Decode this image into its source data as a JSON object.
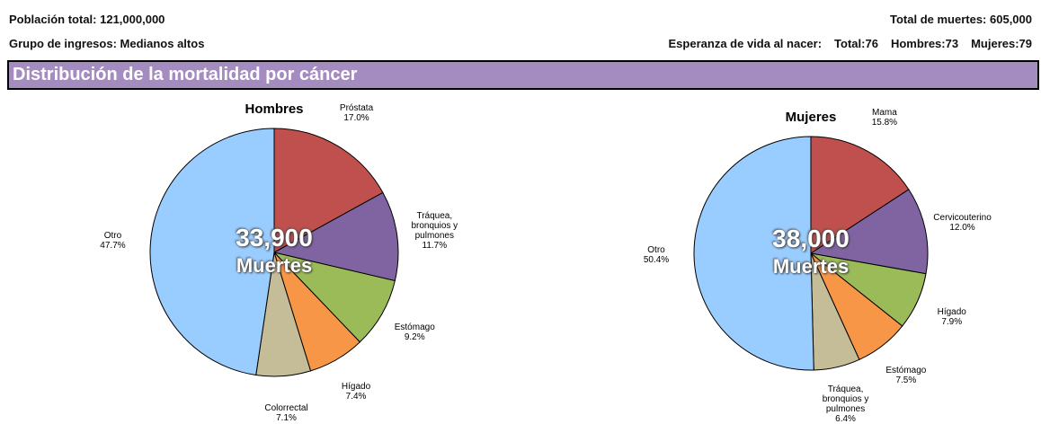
{
  "header": {
    "population": "Población total: 121,000,000",
    "income": "Grupo de ingresos:  Medianos altos",
    "deaths": "Total de muertes: 605,000",
    "life_label": "Esperanza de vida al nacer:",
    "life_total": "Total:76",
    "life_men": "Hombres:73",
    "life_women": "Mujeres:79",
    "section": "Distribución de la mortalidad por cáncer"
  },
  "chart_data": [
    {
      "type": "pie",
      "title": "Hombres",
      "center_value": "33,900",
      "center_label": "Muertes",
      "categories": [
        "Próstata",
        "Tráquea, bronquios y pulmones",
        "Estómago",
        "Hígado",
        "Colorrectal",
        "Otro"
      ],
      "values": [
        17.0,
        11.7,
        9.2,
        7.4,
        7.1,
        47.7
      ],
      "value_labels": [
        "17.0%",
        "11.7%",
        "9.2%",
        "7.4%",
        "7.1%",
        "47.7%"
      ],
      "colors": [
        "#c0504d",
        "#8064a2",
        "#9bbb59",
        "#f79646",
        "#c4bd97",
        "#99ccff"
      ]
    },
    {
      "type": "pie",
      "title": "Mujeres",
      "center_value": "38,000",
      "center_label": "Muertes",
      "categories": [
        "Mama",
        "Cervicouterino",
        "Hígado",
        "Estómago",
        "Tráquea, bronquios y pulmones",
        "Otro"
      ],
      "values": [
        15.8,
        12.0,
        7.9,
        7.5,
        6.4,
        50.4
      ],
      "value_labels": [
        "15.8%",
        "12.0%",
        "7.9%",
        "7.5%",
        "6.4%",
        "50.4%"
      ],
      "colors": [
        "#c0504d",
        "#8064a2",
        "#9bbb59",
        "#f79646",
        "#c4bd97",
        "#99ccff"
      ]
    }
  ]
}
